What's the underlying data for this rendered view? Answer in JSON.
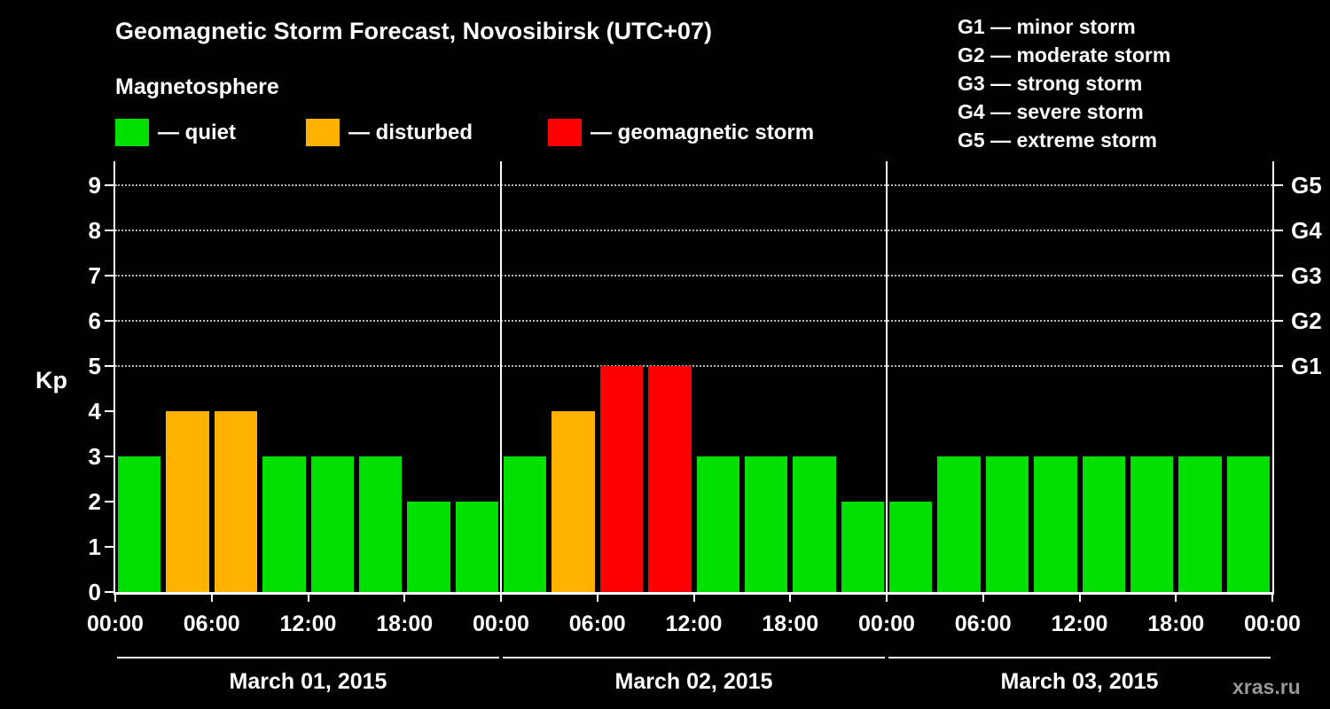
{
  "title": "Geomagnetic Storm Forecast, Novosibirsk (UTC+07)",
  "subtitle": "Magnetosphere",
  "axis_label": "Kp",
  "watermark": "xras.ru",
  "legend": {
    "quiet": "— quiet",
    "disturbed": "— disturbed",
    "storm": "— geomagnetic storm"
  },
  "storm_scale": [
    {
      "tag": "G1",
      "kp": 5,
      "text": "G1 — minor storm"
    },
    {
      "tag": "G2",
      "kp": 6,
      "text": "G2 — moderate storm"
    },
    {
      "tag": "G3",
      "kp": 7,
      "text": "G3 — strong storm"
    },
    {
      "tag": "G4",
      "kp": 8,
      "text": "G4 — severe storm"
    },
    {
      "tag": "G5",
      "kp": 9,
      "text": "G5 — extreme storm"
    }
  ],
  "colors": {
    "quiet": "#00e000",
    "disturbed": "#ffb300",
    "storm": "#ff0000",
    "axis": "#ffffff",
    "grid": "#bbbbbb",
    "watermark": "#979797"
  },
  "chart_data": {
    "type": "bar",
    "title": "Geomagnetic Storm Forecast, Novosibirsk (UTC+07)",
    "ylabel": "Kp",
    "ylim": [
      0,
      9
    ],
    "interval_hours": 3,
    "y_ticks": [
      0,
      1,
      2,
      3,
      4,
      5,
      6,
      7,
      8,
      9
    ],
    "gridlines_kp": [
      5,
      6,
      7,
      8,
      9
    ],
    "x_tick_labels": [
      "00:00",
      "06:00",
      "12:00",
      "18:00",
      "00:00",
      "06:00",
      "12:00",
      "18:00",
      "00:00",
      "06:00",
      "12:00",
      "18:00",
      "00:00"
    ],
    "color_rule": {
      "disturbed_kp": 4,
      "storm_kp_min": 5
    },
    "days": [
      {
        "date": "March 01, 2015",
        "values": [
          3,
          4,
          4,
          3,
          3,
          3,
          2,
          2
        ]
      },
      {
        "date": "March 02, 2015",
        "values": [
          3,
          4,
          5,
          5,
          3,
          3,
          3,
          2
        ]
      },
      {
        "date": "March 03, 2015",
        "values": [
          2,
          3,
          3,
          3,
          3,
          3,
          3,
          3
        ]
      }
    ]
  }
}
